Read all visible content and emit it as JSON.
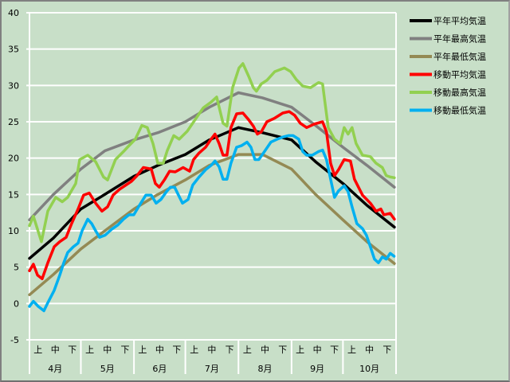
{
  "chart_data": {
    "type": "line",
    "title": "",
    "xlabel": "",
    "ylabel": "",
    "ylim": [
      -5,
      40
    ],
    "yticks": [
      -5,
      0,
      5,
      10,
      15,
      20,
      25,
      30,
      35,
      40
    ],
    "x_unit": "days since April 1",
    "xlim": [
      0,
      213
    ],
    "grid": true,
    "legend_position": "right",
    "months": [
      {
        "label": "4月",
        "start": 0,
        "end": 30
      },
      {
        "label": "5月",
        "start": 30,
        "end": 61
      },
      {
        "label": "6月",
        "start": 61,
        "end": 91
      },
      {
        "label": "7月",
        "start": 91,
        "end": 122
      },
      {
        "label": "8月",
        "start": 122,
        "end": 153
      },
      {
        "label": "9月",
        "start": 153,
        "end": 183
      },
      {
        "label": "10月",
        "start": 183,
        "end": 214
      }
    ],
    "decades": [
      "上",
      "中",
      "下"
    ],
    "series": [
      {
        "name": "平年平均気温",
        "color": "#000000",
        "points": [
          [
            0,
            6.2
          ],
          [
            14,
            9
          ],
          [
            30,
            13
          ],
          [
            44,
            15
          ],
          [
            61,
            17.5
          ],
          [
            75,
            19
          ],
          [
            91,
            20.5
          ],
          [
            105,
            22.5
          ],
          [
            122,
            24.2
          ],
          [
            136,
            23.5
          ],
          [
            153,
            22.5
          ],
          [
            167,
            19.5
          ],
          [
            183,
            16.5
          ],
          [
            197,
            13.5
          ],
          [
            213,
            10.5
          ]
        ]
      },
      {
        "name": "平年最高気温",
        "color": "#808080",
        "points": [
          [
            0,
            11.5
          ],
          [
            14,
            15
          ],
          [
            30,
            18.5
          ],
          [
            44,
            21
          ],
          [
            61,
            22.5
          ],
          [
            75,
            23.5
          ],
          [
            91,
            25
          ],
          [
            105,
            27
          ],
          [
            122,
            29
          ],
          [
            136,
            28.3
          ],
          [
            153,
            27
          ],
          [
            167,
            24.5
          ],
          [
            183,
            21.5
          ],
          [
            197,
            19
          ],
          [
            213,
            16
          ]
        ]
      },
      {
        "name": "平年最低気温",
        "color": "#948a54",
        "points": [
          [
            0,
            1.2
          ],
          [
            14,
            4
          ],
          [
            30,
            7.5
          ],
          [
            44,
            10
          ],
          [
            61,
            13
          ],
          [
            75,
            15
          ],
          [
            91,
            17
          ],
          [
            105,
            19
          ],
          [
            122,
            20.5
          ],
          [
            136,
            20.5
          ],
          [
            153,
            18.5
          ],
          [
            167,
            15
          ],
          [
            183,
            11.5
          ],
          [
            197,
            8.5
          ],
          [
            213,
            5.5
          ]
        ]
      },
      {
        "name": "移動平均気温",
        "color": "#ff0000",
        "points": [
          [
            0,
            4.5
          ],
          [
            2.3,
            5.4
          ],
          [
            4.7,
            3.9
          ],
          [
            7.4,
            3.4
          ],
          [
            10.7,
            5.6
          ],
          [
            14.4,
            7.8
          ],
          [
            17.7,
            8.5
          ],
          [
            21.4,
            9.1
          ],
          [
            24.6,
            11
          ],
          [
            28.4,
            13
          ],
          [
            31.6,
            14.9
          ],
          [
            34.9,
            15.2
          ],
          [
            38.6,
            13.8
          ],
          [
            42.3,
            12.7
          ],
          [
            45.6,
            13.3
          ],
          [
            48.8,
            14.9
          ],
          [
            52.5,
            15.7
          ],
          [
            56.3,
            16.3
          ],
          [
            59.5,
            16.8
          ],
          [
            62.8,
            17.6
          ],
          [
            66.5,
            18.7
          ],
          [
            71.1,
            18.5
          ],
          [
            73.5,
            16.5
          ],
          [
            75.8,
            16
          ],
          [
            79,
            17.1
          ],
          [
            81.8,
            18.2
          ],
          [
            85.1,
            18.1
          ],
          [
            89.7,
            18.7
          ],
          [
            93.5,
            18.2
          ],
          [
            95.8,
            19.8
          ],
          [
            99,
            20.7
          ],
          [
            102.8,
            21.5
          ],
          [
            106,
            22.6
          ],
          [
            108.3,
            23.3
          ],
          [
            110.7,
            22
          ],
          [
            113,
            20.4
          ],
          [
            115.3,
            20.4
          ],
          [
            117.6,
            24.2
          ],
          [
            120.9,
            26.1
          ],
          [
            124.6,
            26.2
          ],
          [
            127.9,
            25.3
          ],
          [
            130.7,
            24.4
          ],
          [
            133,
            23.3
          ],
          [
            135.3,
            23.6
          ],
          [
            138.6,
            25
          ],
          [
            143.2,
            25.5
          ],
          [
            147.9,
            26.2
          ],
          [
            151.6,
            26.4
          ],
          [
            154.8,
            25.9
          ],
          [
            158.1,
            24.8
          ],
          [
            161.8,
            24.2
          ],
          [
            166.5,
            24.7
          ],
          [
            171.1,
            25
          ],
          [
            173.4,
            23.6
          ],
          [
            175.8,
            19.3
          ],
          [
            178.1,
            17.6
          ],
          [
            180.4,
            18.4
          ],
          [
            183.7,
            19.8
          ],
          [
            187.4,
            19.6
          ],
          [
            189.7,
            17.1
          ],
          [
            194.4,
            14.9
          ],
          [
            199,
            13.8
          ],
          [
            202.3,
            12.7
          ],
          [
            205.1,
            13
          ],
          [
            206.9,
            12.2
          ],
          [
            210.6,
            12.4
          ],
          [
            213,
            11.6
          ]
        ]
      },
      {
        "name": "移動最高気温",
        "color": "#92d050",
        "points": [
          [
            0,
            10.7
          ],
          [
            2.3,
            12
          ],
          [
            7,
            8.5
          ],
          [
            10.7,
            12.7
          ],
          [
            15.3,
            14.6
          ],
          [
            19.1,
            14
          ],
          [
            22.3,
            14.6
          ],
          [
            27,
            16.5
          ],
          [
            29.3,
            19.8
          ],
          [
            34,
            20.4
          ],
          [
            38.6,
            19.5
          ],
          [
            43.2,
            17.4
          ],
          [
            45.6,
            17
          ],
          [
            50.2,
            19.8
          ],
          [
            54.9,
            20.9
          ],
          [
            57.2,
            21.5
          ],
          [
            61.8,
            22.6
          ],
          [
            65.6,
            24.5
          ],
          [
            68.8,
            24.2
          ],
          [
            72.1,
            22
          ],
          [
            74.9,
            19.3
          ],
          [
            78.1,
            19.3
          ],
          [
            80.4,
            21
          ],
          [
            84.2,
            23.1
          ],
          [
            87.4,
            22.6
          ],
          [
            92.1,
            23.7
          ],
          [
            96.7,
            25.3
          ],
          [
            101.4,
            26.9
          ],
          [
            106,
            27.7
          ],
          [
            109.3,
            28.4
          ],
          [
            113,
            24.8
          ],
          [
            115.3,
            24.4
          ],
          [
            118.6,
            29.7
          ],
          [
            122.3,
            32.4
          ],
          [
            124.6,
            33
          ],
          [
            127.9,
            31.3
          ],
          [
            130.7,
            29.7
          ],
          [
            132.5,
            29.2
          ],
          [
            135.3,
            30.2
          ],
          [
            138.6,
            30.7
          ],
          [
            143.2,
            31.9
          ],
          [
            148.8,
            32.4
          ],
          [
            152.5,
            31.9
          ],
          [
            155.8,
            30.8
          ],
          [
            159.5,
            29.9
          ],
          [
            164.1,
            29.7
          ],
          [
            168.8,
            30.4
          ],
          [
            171.1,
            30.2
          ],
          [
            174.4,
            24.2
          ],
          [
            178.1,
            22.6
          ],
          [
            181.4,
            22
          ],
          [
            183.7,
            24.2
          ],
          [
            186,
            23.3
          ],
          [
            188.3,
            24.2
          ],
          [
            190.7,
            22
          ],
          [
            194.4,
            20.4
          ],
          [
            199,
            20.2
          ],
          [
            202.3,
            19.3
          ],
          [
            206,
            18.7
          ],
          [
            208.3,
            17.6
          ],
          [
            210.6,
            17.4
          ],
          [
            213,
            17.3
          ]
        ]
      },
      {
        "name": "移動最低気温",
        "color": "#00b0f0",
        "points": [
          [
            0,
            -0.4
          ],
          [
            2.3,
            0.3
          ],
          [
            5.1,
            -0.4
          ],
          [
            8.4,
            -1
          ],
          [
            10.7,
            0.1
          ],
          [
            14.4,
            1.8
          ],
          [
            17.7,
            3.9
          ],
          [
            20,
            5.6
          ],
          [
            22.3,
            7
          ],
          [
            25.6,
            7.8
          ],
          [
            28.4,
            8.3
          ],
          [
            30.7,
            10
          ],
          [
            34,
            11.6
          ],
          [
            36.3,
            11
          ],
          [
            38.6,
            10
          ],
          [
            40.9,
            9.1
          ],
          [
            44.2,
            9.4
          ],
          [
            47.9,
            10.2
          ],
          [
            51.6,
            10.8
          ],
          [
            54.9,
            11.6
          ],
          [
            58.1,
            12.2
          ],
          [
            60.9,
            12.2
          ],
          [
            64.2,
            13.5
          ],
          [
            67.9,
            14.9
          ],
          [
            71.1,
            14.9
          ],
          [
            73.9,
            13.8
          ],
          [
            76.7,
            14.3
          ],
          [
            80,
            15.4
          ],
          [
            82.3,
            16
          ],
          [
            84.7,
            16
          ],
          [
            87,
            14.9
          ],
          [
            89.3,
            13.8
          ],
          [
            92.6,
            14.3
          ],
          [
            95.3,
            16.3
          ],
          [
            99,
            17.4
          ],
          [
            102.8,
            18.4
          ],
          [
            106,
            19
          ],
          [
            108.3,
            19.6
          ],
          [
            110.7,
            18.8
          ],
          [
            113,
            17.1
          ],
          [
            115.3,
            17.1
          ],
          [
            117.6,
            19.3
          ],
          [
            120.9,
            21.5
          ],
          [
            123.7,
            21.7
          ],
          [
            127,
            22.2
          ],
          [
            129.3,
            21.5
          ],
          [
            131.6,
            19.8
          ],
          [
            133.9,
            19.8
          ],
          [
            137.2,
            20.9
          ],
          [
            140.9,
            22.2
          ],
          [
            144.6,
            22.6
          ],
          [
            147.9,
            22.9
          ],
          [
            151.1,
            23.1
          ],
          [
            153.9,
            23.1
          ],
          [
            157.2,
            22.6
          ],
          [
            159.5,
            20.9
          ],
          [
            161.8,
            20.4
          ],
          [
            165.1,
            20.4
          ],
          [
            168.8,
            20.9
          ],
          [
            171.1,
            21.1
          ],
          [
            173.4,
            19.8
          ],
          [
            175.8,
            17.1
          ],
          [
            178.1,
            14.6
          ],
          [
            180.4,
            15.5
          ],
          [
            183.7,
            16.2
          ],
          [
            186,
            15.4
          ],
          [
            188.3,
            13.3
          ],
          [
            191.1,
            11
          ],
          [
            194.4,
            10.3
          ],
          [
            196.7,
            9.4
          ],
          [
            199,
            7.8
          ],
          [
            201.4,
            6.1
          ],
          [
            203.7,
            5.6
          ],
          [
            206,
            6.4
          ],
          [
            208.3,
            6.1
          ],
          [
            210.6,
            6.9
          ],
          [
            212.9,
            6.5
          ]
        ]
      }
    ]
  }
}
